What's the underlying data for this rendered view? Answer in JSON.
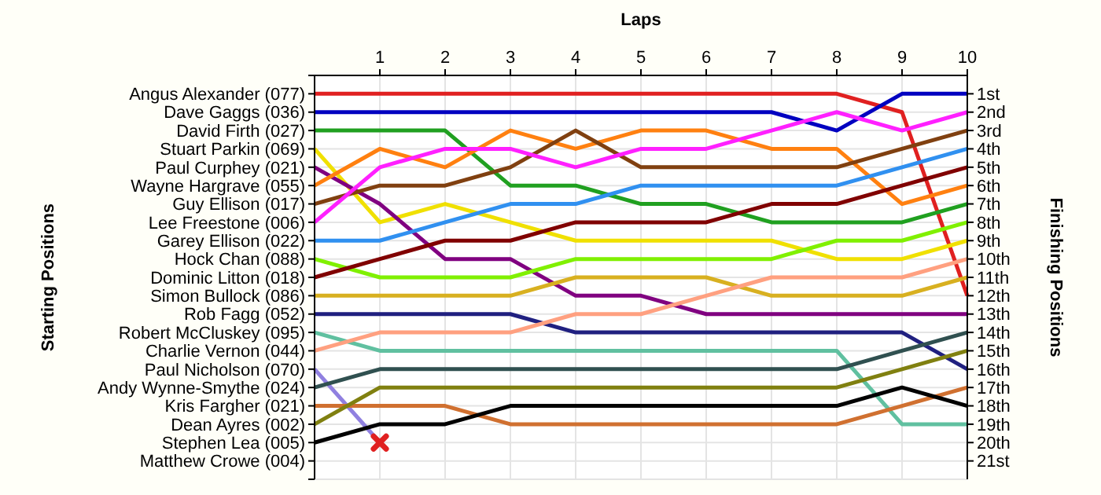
{
  "chart_data": {
    "type": "line",
    "xlabel": "Laps",
    "annotations": [
      "Starting Positions"
    ],
    "y2label": "Finishing Positions",
    "x": [
      0,
      1,
      2,
      3,
      4,
      5,
      6,
      7,
      8,
      9,
      10
    ],
    "xlim": [
      0,
      10
    ],
    "xticks": [
      1,
      2,
      3,
      4,
      5,
      6,
      7,
      8,
      9,
      10
    ],
    "ylim": [
      22,
      0
    ],
    "y_categories": [
      "Angus Alexander (077)",
      "Dave Gaggs (036)",
      "David Firth (027)",
      "Stuart Parkin (069)",
      "Paul Curphey (021)",
      "Wayne Hargrave (055)",
      "Guy Ellison (017)",
      "Lee Freestone (006)",
      "Garey Ellison (022)",
      "Hock Chan (088)",
      "Dominic Litton (018)",
      "Simon Bullock (086)",
      "Rob Fagg (052)",
      "Robert McCluskey (095)",
      "Charlie Vernon (044)",
      "Paul Nicholson (070)",
      "Andy Wynne-Smythe (024)",
      "Kris Fargher (021)",
      "Dean Ayres (002)",
      "Stephen Lea (005)",
      "Matthew Crowe (004)"
    ],
    "yticks": [
      {
        "value": 0,
        "label": null
      },
      {
        "value": 1,
        "label": "1st"
      },
      {
        "value": 2,
        "label": "2nd"
      },
      {
        "value": 3,
        "label": "3rd"
      },
      {
        "value": 4,
        "label": "4th"
      },
      {
        "value": 5,
        "label": "5th"
      },
      {
        "value": 6,
        "label": "6th"
      },
      {
        "value": 7,
        "label": "7th"
      },
      {
        "value": 8,
        "label": "8th"
      },
      {
        "value": 9,
        "label": "9th"
      },
      {
        "value": 10,
        "label": "10th"
      },
      {
        "value": 11,
        "label": "11th"
      },
      {
        "value": 12,
        "label": "12th"
      },
      {
        "value": 13,
        "label": "13th"
      },
      {
        "value": 14,
        "label": "14th"
      },
      {
        "value": 15,
        "label": "15th"
      },
      {
        "value": 16,
        "label": "16th"
      },
      {
        "value": 17,
        "label": "17th"
      },
      {
        "value": 18,
        "label": "18th"
      },
      {
        "value": 19,
        "label": "19th"
      },
      {
        "value": 20,
        "label": "20th"
      },
      {
        "value": 21,
        "label": "21st"
      },
      {
        "value": 22,
        "label": null
      }
    ],
    "grid": true,
    "marker": "none",
    "line_style": "solid",
    "series": [
      {
        "color": "#e02020",
        "values": [
          1,
          1,
          1,
          1,
          1,
          1,
          1,
          1,
          1,
          2,
          12
        ]
      },
      {
        "color": "#0000c0",
        "values": [
          2,
          2,
          2,
          2,
          2,
          2,
          2,
          2,
          3,
          1,
          1
        ]
      },
      {
        "color": "#20a020",
        "values": [
          3,
          3,
          3,
          6,
          6,
          7,
          7,
          8,
          8,
          8,
          7
        ]
      },
      {
        "color": "#f0e000",
        "values": [
          4,
          8,
          7,
          8,
          9,
          9,
          9,
          9,
          10,
          10,
          9
        ]
      },
      {
        "color": "#800080",
        "values": [
          5,
          7,
          10,
          10,
          12,
          12,
          13,
          13,
          13,
          13,
          13
        ]
      },
      {
        "color": "#ff8010",
        "values": [
          6,
          4,
          5,
          3,
          4,
          3,
          3,
          4,
          4,
          7,
          6
        ]
      },
      {
        "color": "#804010",
        "values": [
          7,
          6,
          6,
          5,
          3,
          5,
          5,
          5,
          5,
          4,
          3
        ]
      },
      {
        "color": "#ff20ff",
        "values": [
          8,
          5,
          4,
          4,
          5,
          4,
          4,
          3,
          2,
          3,
          2
        ]
      },
      {
        "color": "#3090f0",
        "values": [
          9,
          9,
          8,
          7,
          7,
          6,
          6,
          6,
          6,
          5,
          4
        ]
      },
      {
        "color": "#80f000",
        "values": [
          10,
          11,
          11,
          11,
          10,
          10,
          10,
          10,
          9,
          9,
          8
        ]
      },
      {
        "color": "#800000",
        "values": [
          11,
          10,
          9,
          9,
          8,
          8,
          8,
          7,
          7,
          6,
          5
        ]
      },
      {
        "color": "#d8b020",
        "values": [
          12,
          12,
          12,
          12,
          11,
          11,
          11,
          12,
          12,
          12,
          11
        ]
      },
      {
        "color": "#202080",
        "values": [
          13,
          13,
          13,
          13,
          14,
          14,
          14,
          14,
          14,
          14,
          16
        ]
      },
      {
        "color": "#60c0a0",
        "values": [
          14,
          15,
          15,
          15,
          15,
          15,
          15,
          15,
          15,
          19,
          19
        ]
      },
      {
        "color": "#ffa080",
        "values": [
          15,
          14,
          14,
          14,
          13,
          13,
          12,
          11,
          11,
          11,
          10
        ]
      },
      {
        "color": "#9080e0",
        "values": [
          16,
          20,
          null,
          null,
          null,
          null,
          null,
          null,
          null,
          null,
          null
        ]
      },
      {
        "color": "#305050",
        "values": [
          17,
          16,
          16,
          16,
          16,
          16,
          16,
          16,
          16,
          15,
          14
        ]
      },
      {
        "color": "#d07030",
        "values": [
          18,
          18,
          18,
          19,
          19,
          19,
          19,
          19,
          19,
          18,
          17
        ]
      },
      {
        "color": "#808010",
        "values": [
          19,
          17,
          17,
          17,
          17,
          17,
          17,
          17,
          17,
          16,
          15
        ]
      },
      {
        "color": "#000000",
        "values": [
          20,
          19,
          19,
          18,
          18,
          18,
          18,
          18,
          18,
          17,
          18
        ]
      },
      {
        "type": "scatter",
        "x": [
          1
        ],
        "values": [
          20
        ],
        "color": "#e02020",
        "marker": "cross"
      }
    ]
  }
}
